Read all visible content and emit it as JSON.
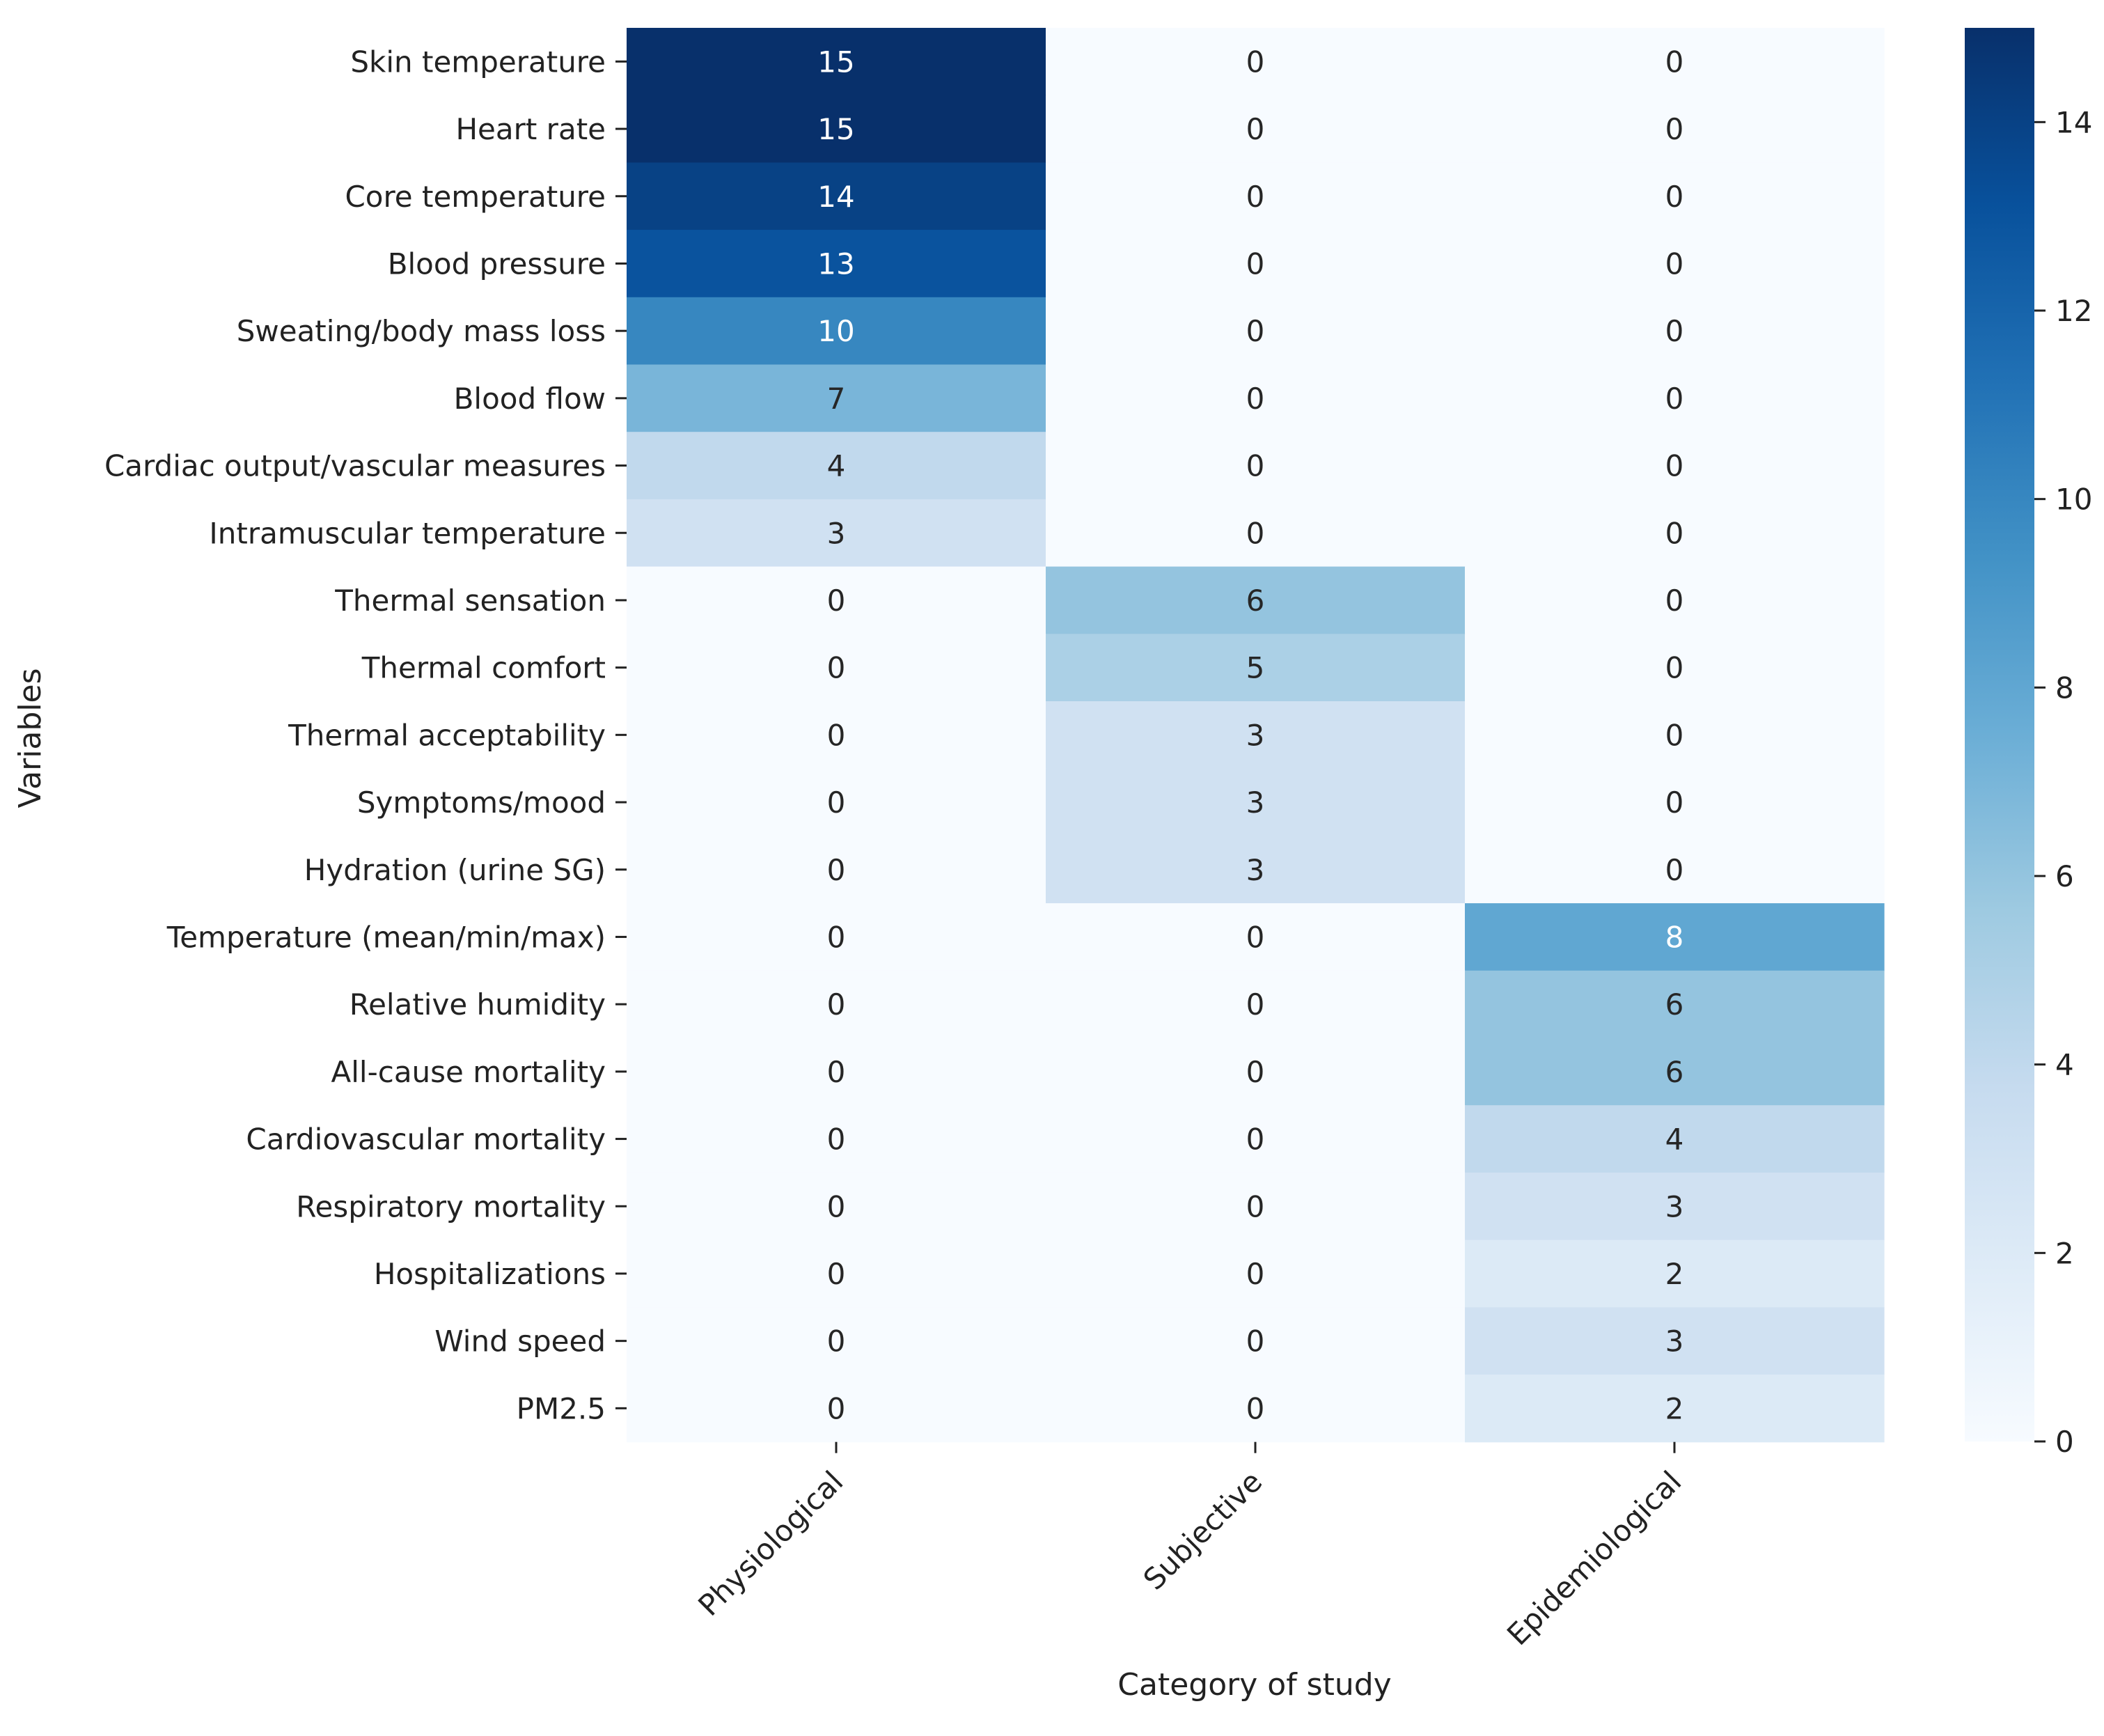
{
  "chart_data": {
    "type": "heatmap",
    "title": "",
    "xlabel": "Category of study",
    "ylabel": "Variables",
    "columns": [
      "Physiological",
      "Subjective",
      "Epidemiological"
    ],
    "rows": [
      "Skin temperature",
      "Heart rate",
      "Core temperature",
      "Blood pressure",
      "Sweating/body mass loss",
      "Blood flow",
      "Cardiac output/vascular measures",
      "Intramuscular temperature",
      "Thermal sensation",
      "Thermal comfort",
      "Thermal acceptability",
      "Symptoms/mood",
      "Hydration (urine SG)",
      "Temperature (mean/min/max)",
      "Relative humidity",
      "All-cause mortality",
      "Cardiovascular mortality",
      "Respiratory mortality",
      "Hospitalizations",
      "Wind speed",
      "PM2.5"
    ],
    "values": [
      [
        15,
        0,
        0
      ],
      [
        15,
        0,
        0
      ],
      [
        14,
        0,
        0
      ],
      [
        13,
        0,
        0
      ],
      [
        10,
        0,
        0
      ],
      [
        7,
        0,
        0
      ],
      [
        4,
        0,
        0
      ],
      [
        3,
        0,
        0
      ],
      [
        0,
        6,
        0
      ],
      [
        0,
        5,
        0
      ],
      [
        0,
        3,
        0
      ],
      [
        0,
        3,
        0
      ],
      [
        0,
        3,
        0
      ],
      [
        0,
        0,
        8
      ],
      [
        0,
        0,
        6
      ],
      [
        0,
        0,
        6
      ],
      [
        0,
        0,
        4
      ],
      [
        0,
        0,
        3
      ],
      [
        0,
        0,
        2
      ],
      [
        0,
        0,
        3
      ],
      [
        0,
        0,
        2
      ]
    ],
    "colormap": "Blues",
    "vmin": 0,
    "vmax": 15,
    "colorbar_ticks": [
      0,
      2,
      4,
      6,
      8,
      10,
      12,
      14
    ],
    "annotations": true,
    "grid": false
  }
}
